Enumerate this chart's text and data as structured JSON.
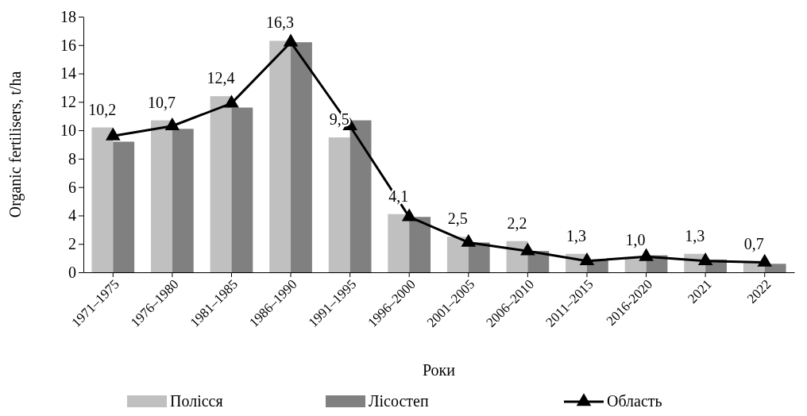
{
  "chart_data": {
    "type": "bar",
    "xlabel": "Роки",
    "ylabel": "Organic fertilisers, t/ha",
    "categories": [
      "1971–1975",
      "1976–1980",
      "1981–1985",
      "1986–1990",
      "1991–1995",
      "1996–2000",
      "2001–2005",
      "2006–2010",
      "2011–2015",
      "2016-2020",
      "2021",
      "2022"
    ],
    "series": [
      {
        "name": "Полісся",
        "color": "#c0c0c0",
        "values": [
          10.2,
          10.7,
          12.4,
          16.3,
          9.5,
          4.1,
          2.5,
          2.2,
          1.3,
          1.0,
          1.3,
          0.7
        ],
        "value_labels": [
          "10,2",
          "10,7",
          "12,4",
          "16,3",
          "9,5",
          "4,1",
          "2,5",
          "2,2",
          "1,3",
          "1,0",
          "1,3",
          "0,7"
        ]
      },
      {
        "name": "Лісостеп",
        "color": "#808080",
        "values": [
          9.2,
          10.1,
          11.6,
          16.2,
          10.7,
          3.9,
          2.1,
          1.5,
          0.9,
          1.2,
          0.9,
          0.6
        ]
      },
      {
        "name": "Область",
        "type": "line",
        "color": "#000000",
        "marker": "triangle",
        "values": [
          9.6,
          10.3,
          11.9,
          16.2,
          10.3,
          3.9,
          2.1,
          1.5,
          0.8,
          1.1,
          0.8,
          0.7
        ]
      }
    ],
    "ylim": [
      0,
      18
    ],
    "yticks": [
      0,
      2,
      4,
      6,
      8,
      10,
      12,
      14,
      16,
      18
    ],
    "legend": "bottom"
  }
}
